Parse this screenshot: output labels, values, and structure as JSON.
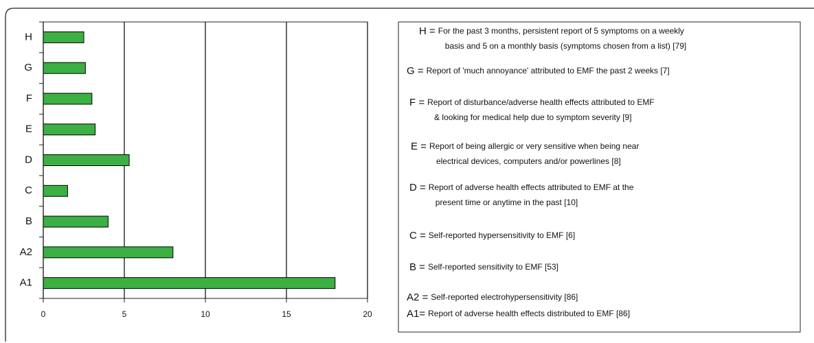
{
  "chart_data": {
    "type": "hbar",
    "categories": [
      "H",
      "G",
      "F",
      "E",
      "D",
      "C",
      "B",
      "A2",
      "A1"
    ],
    "values": [
      2.5,
      2.6,
      3.0,
      3.2,
      5.3,
      1.5,
      4.0,
      8.0,
      18.0
    ],
    "color": "#3cb043",
    "xlim": [
      0,
      20
    ],
    "xticks": [
      0,
      5,
      10,
      15,
      20
    ],
    "grid": true,
    "notes": [
      {
        "key": "H =",
        "lines": [
          "For the past 3 months, persistent report of 5 symptoms on a weekly",
          "basis and 5 on a monthly basis (symptoms chosen from a list) [79]"
        ]
      },
      {
        "key": "G =",
        "lines": [
          "Report of 'much annoyance' attributed to EMF the past 2 weeks [7]"
        ]
      },
      {
        "key": "F =",
        "lines": [
          "Report of disturbance/adverse health effects attributed to EMF",
          "& looking for medical help due to symptom severity [9]"
        ]
      },
      {
        "key": "E =",
        "lines": [
          "Report of being allergic or very sensitive when being near",
          "electrical devices, computers and/or powerlines [8]"
        ]
      },
      {
        "key": "D =",
        "lines": [
          "Report of adverse health effects attributed to EMF at the",
          "present time or anytime in the past [10]"
        ]
      },
      {
        "key": "C =",
        "lines": [
          "Self-reported hypersensitivity to EMF [6]"
        ]
      },
      {
        "key": "B =",
        "lines": [
          "Self-reported sensitivity to EMF [53]"
        ]
      },
      {
        "key": "A2 =",
        "lines": [
          "Self-reported electrohypersensitivity [86]"
        ]
      },
      {
        "key": "A1=",
        "lines": [
          "Report of adverse health effects distributed to EMF [86]"
        ]
      }
    ]
  }
}
